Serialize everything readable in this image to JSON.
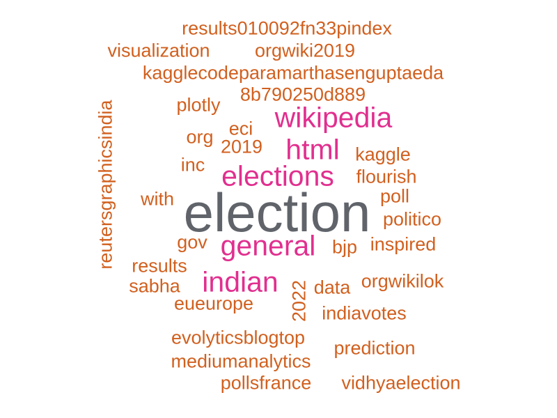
{
  "colors": {
    "primary": "#60646a",
    "accent": "#e12f8f",
    "other": "#d1601f"
  },
  "words": [
    {
      "text": "election",
      "color": "primary"
    },
    {
      "text": "wikipedia",
      "color": "accent"
    },
    {
      "text": "html",
      "color": "accent"
    },
    {
      "text": "elections",
      "color": "accent"
    },
    {
      "text": "general",
      "color": "accent"
    },
    {
      "text": "indian",
      "color": "accent"
    },
    {
      "text": "results010092fn33pindex",
      "color": "other"
    },
    {
      "text": "visualization",
      "color": "other"
    },
    {
      "text": "orgwiki2019",
      "color": "other"
    },
    {
      "text": "kagglecodeparamarthasenguptaeda",
      "color": "other"
    },
    {
      "text": "8b790250d889",
      "color": "other"
    },
    {
      "text": "plotly",
      "color": "other"
    },
    {
      "text": "eci",
      "color": "other"
    },
    {
      "text": "org",
      "color": "other"
    },
    {
      "text": "2019",
      "color": "other"
    },
    {
      "text": "kaggle",
      "color": "other"
    },
    {
      "text": "inc",
      "color": "other"
    },
    {
      "text": "flourish",
      "color": "other"
    },
    {
      "text": "with",
      "color": "other"
    },
    {
      "text": "poll",
      "color": "other"
    },
    {
      "text": "politico",
      "color": "other"
    },
    {
      "text": "gov",
      "color": "other"
    },
    {
      "text": "bjp",
      "color": "other"
    },
    {
      "text": "inspired",
      "color": "other"
    },
    {
      "text": "results",
      "color": "other"
    },
    {
      "text": "sabha",
      "color": "other"
    },
    {
      "text": "data",
      "color": "other"
    },
    {
      "text": "orgwikilok",
      "color": "other"
    },
    {
      "text": "eueurope",
      "color": "other"
    },
    {
      "text": "indiavotes",
      "color": "other"
    },
    {
      "text": "evolyticsblogtop",
      "color": "other"
    },
    {
      "text": "prediction",
      "color": "other"
    },
    {
      "text": "mediumanalytics",
      "color": "other"
    },
    {
      "text": "pollsfrance",
      "color": "other"
    },
    {
      "text": "vidhyaelection",
      "color": "other"
    },
    {
      "text": "reutersgraphicsindia",
      "color": "other"
    },
    {
      "text": "2022",
      "color": "other"
    }
  ]
}
